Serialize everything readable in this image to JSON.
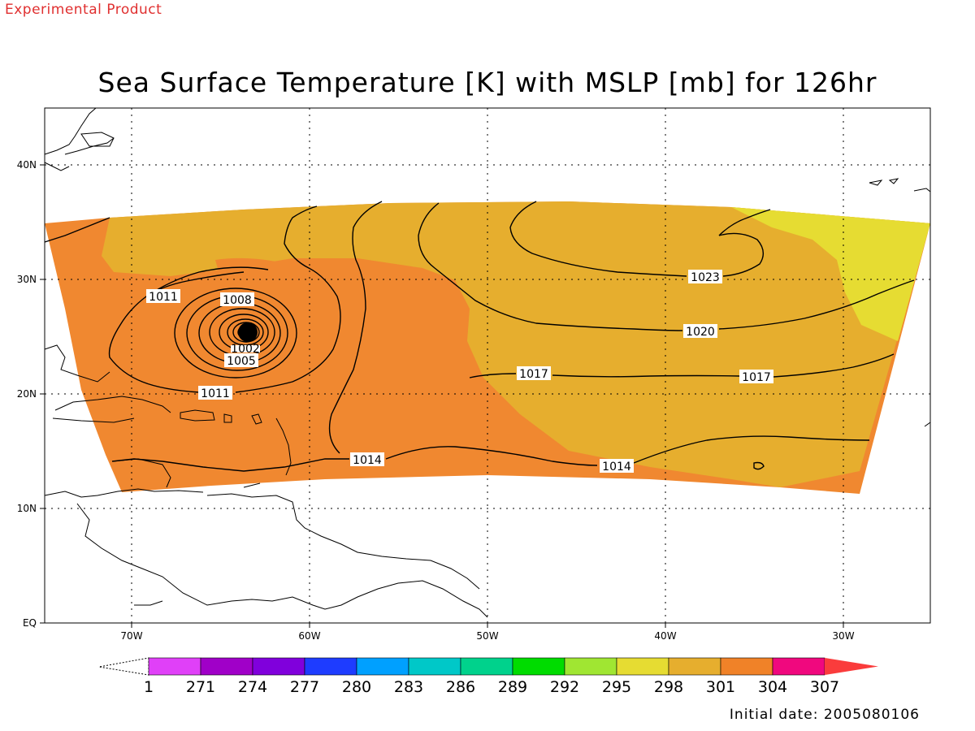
{
  "header": {
    "experimental": "Experimental Product",
    "title": "Sea Surface Temperature [K] with MSLP [mb] for 126hr",
    "initial_date": "Initial date: 2005080106"
  },
  "map": {
    "x_ticks": [
      "70W",
      "60W",
      "50W",
      "40W",
      "30W"
    ],
    "y_ticks": [
      "40N",
      "30N",
      "20N",
      "10N",
      "EQ"
    ],
    "contour_labels": [
      "1023",
      "1020",
      "1017",
      "1017",
      "1014",
      "1014",
      "1011",
      "1011",
      "1008",
      "1005",
      "1002"
    ],
    "colors": {
      "warm_orange": "#f08830",
      "mid_orange": "#e6ae2e",
      "yellow": "#e6dc32"
    }
  },
  "colorbar": {
    "labels": [
      "1",
      "271",
      "274",
      "277",
      "280",
      "283",
      "286",
      "289",
      "292",
      "295",
      "298",
      "301",
      "304",
      "307"
    ],
    "colors": [
      "#e040f8",
      "#a000c8",
      "#8000dc",
      "#1e3cff",
      "#00a0ff",
      "#00c8c8",
      "#00d28c",
      "#00dc00",
      "#a0e632",
      "#e6dc32",
      "#e6ae2e",
      "#f08228",
      "#f0087e",
      "#fa3c3c"
    ]
  }
}
